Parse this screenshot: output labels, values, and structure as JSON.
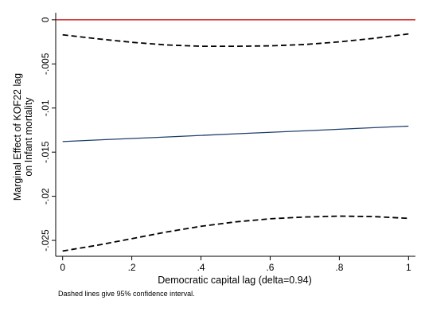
{
  "chart_data": {
    "type": "line",
    "xlabel": "Democratic capital lag (delta=0.94)",
    "ylabel_line1": "Marginal Effect of KOF22 lag",
    "ylabel_line2": "on Infant mortality",
    "note": "Dashed lines give 95% confidence interval.",
    "xlim": [
      -0.02,
      1.02
    ],
    "ylim": [
      -0.0268,
      0.0008
    ],
    "x_ticks": [
      0,
      0.2,
      0.4,
      0.6,
      0.8,
      1
    ],
    "x_tick_labels": [
      "0",
      ".2",
      ".4",
      ".6",
      ".8",
      "1"
    ],
    "y_ticks": [
      0,
      -0.005,
      -0.01,
      -0.015,
      -0.02,
      -0.025
    ],
    "y_tick_labels": [
      "0",
      "-.005",
      "-.01",
      "-.015",
      "-.02",
      "-.025"
    ],
    "grid": false,
    "x": [
      0,
      0.1,
      0.2,
      0.3,
      0.4,
      0.5,
      0.6,
      0.7,
      0.8,
      0.9,
      1
    ],
    "series": [
      {
        "values": [
          -0.0138,
          -0.01362,
          -0.01345,
          -0.01328,
          -0.0131,
          -0.01292,
          -0.01275,
          -0.01258,
          -0.0124,
          -0.01222,
          -0.01205
        ],
        "style": "solid",
        "color": "#1f3f6b"
      },
      {
        "values": [
          -0.0017,
          -0.00215,
          -0.00255,
          -0.00285,
          -0.003,
          -0.003,
          -0.00295,
          -0.0028,
          -0.0025,
          -0.0021,
          -0.0016
        ],
        "style": "dashed",
        "color": "#000000"
      },
      {
        "values": [
          -0.0262,
          -0.02555,
          -0.0248,
          -0.02405,
          -0.0234,
          -0.0229,
          -0.02255,
          -0.02235,
          -0.02225,
          -0.0223,
          -0.0225
        ],
        "style": "dashed",
        "color": "#000000"
      }
    ],
    "reference_line": {
      "y": 0,
      "color": "#c00000"
    }
  }
}
